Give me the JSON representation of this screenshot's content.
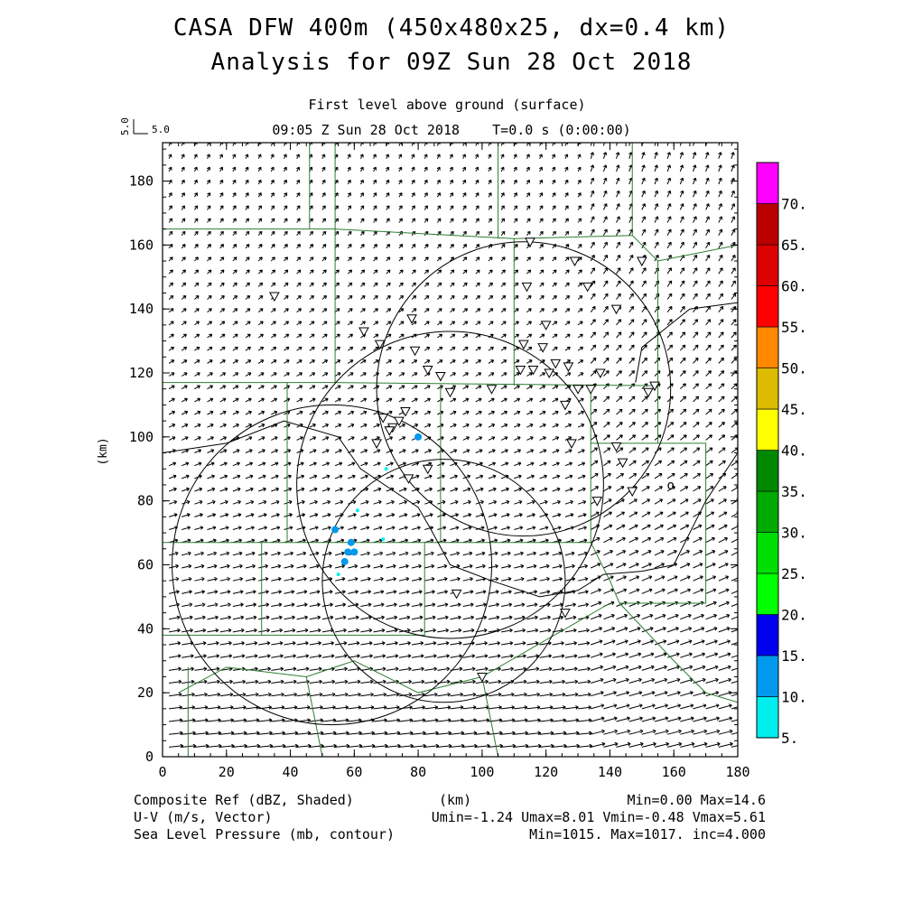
{
  "header": {
    "title_line1": "CASA DFW 400m (450x480x25, dx=0.4 km)",
    "title_line2": "Analysis for 09Z Sun 28 Oct 2018",
    "level": "First level above ground (surface)",
    "time": "09:05 Z Sun 28 Oct 2018    T=0.0 s (0:00:00)",
    "ref_vector_v": "5.0",
    "ref_vector_u": "5.0"
  },
  "chart_data": {
    "type": "heatmap",
    "xlabel": "(km)",
    "ylabel": "(km)",
    "xlim": [
      0,
      180
    ],
    "ylim": [
      0,
      192
    ],
    "x_ticks": [
      "0",
      "20",
      "40",
      "60",
      "80",
      "100",
      "120",
      "140",
      "160",
      "180"
    ],
    "y_ticks": [
      "0",
      "20",
      "40",
      "60",
      "80",
      "100",
      "120",
      "140",
      "160",
      "180"
    ],
    "colorbar": {
      "labels": [
        "5.",
        "10.",
        "15.",
        "20.",
        "25.",
        "30.",
        "35.",
        "40.",
        "45.",
        "50.",
        "55.",
        "60.",
        "65.",
        "70."
      ],
      "colors": [
        "#00eeee",
        "#0099ee",
        "#0000ee",
        "#00ff00",
        "#00dd00",
        "#00aa00",
        "#008800",
        "#ffff00",
        "#ddbb00",
        "#ff8800",
        "#ff0000",
        "#dd0000",
        "#bb0000",
        "#ff00ff"
      ]
    },
    "radar_rings": [
      {
        "cx": 53,
        "cy": 60,
        "r": 50
      },
      {
        "cx": 88,
        "cy": 55,
        "r": 38
      },
      {
        "cx": 90,
        "cy": 85,
        "r": 48
      },
      {
        "cx": 113,
        "cy": 115,
        "r": 46
      }
    ],
    "reflectivity_echoes": [
      {
        "x": 80,
        "y": 100,
        "dbz": 10
      },
      {
        "x": 54,
        "y": 71,
        "dbz": 10
      },
      {
        "x": 59,
        "y": 67,
        "dbz": 10
      },
      {
        "x": 58,
        "y": 64,
        "dbz": 10
      },
      {
        "x": 60,
        "y": 64,
        "dbz": 10
      },
      {
        "x": 57,
        "y": 61,
        "dbz": 10
      },
      {
        "x": 55,
        "y": 57,
        "dbz": 8
      },
      {
        "x": 70,
        "y": 90,
        "dbz": 6
      },
      {
        "x": 69,
        "y": 68,
        "dbz": 6
      },
      {
        "x": 61,
        "y": 77,
        "dbz": 6
      }
    ],
    "stations": [
      [
        35,
        144
      ],
      [
        63,
        133
      ],
      [
        68,
        129
      ],
      [
        78,
        137
      ],
      [
        79,
        127
      ],
      [
        83,
        121
      ],
      [
        87,
        119
      ],
      [
        90,
        114
      ],
      [
        69,
        106
      ],
      [
        72,
        103
      ],
      [
        74,
        105
      ],
      [
        76,
        108
      ],
      [
        71,
        102
      ],
      [
        67,
        98
      ],
      [
        77,
        87
      ],
      [
        83,
        90
      ],
      [
        115,
        161
      ],
      [
        114,
        147
      ],
      [
        120,
        135
      ],
      [
        113,
        129
      ],
      [
        116,
        121
      ],
      [
        121,
        120
      ],
      [
        123,
        123
      ],
      [
        119,
        128
      ],
      [
        127,
        122
      ],
      [
        129,
        155
      ],
      [
        133,
        147
      ],
      [
        142,
        140
      ],
      [
        126,
        110
      ],
      [
        130,
        115
      ],
      [
        128,
        98
      ],
      [
        134,
        115
      ],
      [
        137,
        120
      ],
      [
        136,
        80
      ],
      [
        142,
        97
      ],
      [
        144,
        92
      ],
      [
        147,
        83
      ],
      [
        150,
        155
      ],
      [
        152,
        114
      ],
      [
        154,
        116
      ],
      [
        112,
        121
      ],
      [
        103,
        115
      ],
      [
        92,
        51
      ],
      [
        100,
        25
      ],
      [
        126,
        45
      ]
    ],
    "min_marker": {
      "x": 159,
      "y": 85,
      "label": "o"
    },
    "footer": {
      "field1_label": "Composite Ref (dBZ, Shaded)",
      "field1_range": "Min=0.00 Max=14.6",
      "field2_label": "U-V (m/s, Vector)",
      "field2_range": "Umin=-1.24 Umax=8.01 Vmin=-0.48 Vmax=5.61",
      "field3_label": "Sea Level Pressure (mb, contour)",
      "field3_range": "Min=1015. Max=1017. inc=4.000",
      "xunit": "(km)"
    }
  }
}
